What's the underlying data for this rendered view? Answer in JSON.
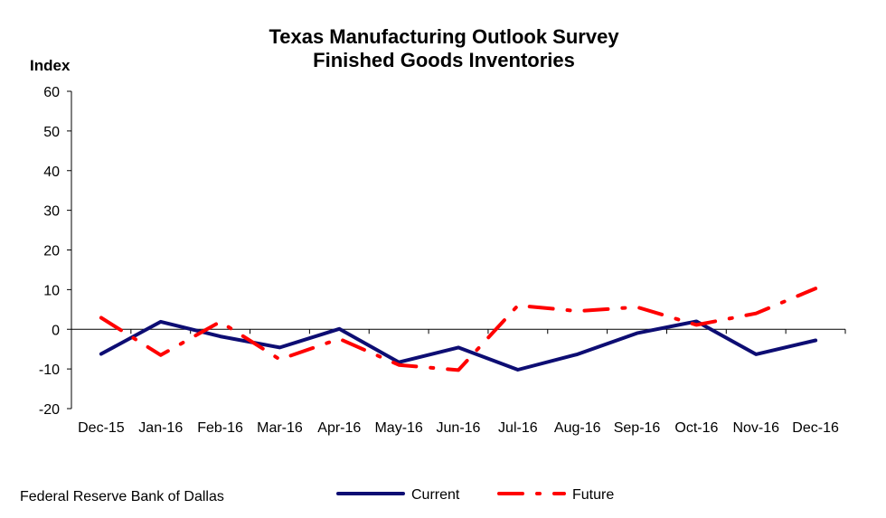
{
  "chart_data": {
    "type": "line",
    "title": "Texas Manufacturing Outlook Survey",
    "subtitle": "Finished Goods Inventories",
    "ylabel": "Index",
    "xlabel": "",
    "ylim": [
      -20,
      60
    ],
    "yticks": [
      -20,
      -10,
      0,
      10,
      20,
      30,
      40,
      50,
      60
    ],
    "categories": [
      "Dec-15",
      "Jan-16",
      "Feb-16",
      "Mar-16",
      "Apr-16",
      "May-16",
      "Jun-16",
      "Jul-16",
      "Aug-16",
      "Sep-16",
      "Oct-16",
      "Nov-16",
      "Dec-16"
    ],
    "series": [
      {
        "name": "Current",
        "color": "#0d0d73",
        "style": "solid",
        "values": [
          -6.2,
          1.9,
          -1.8,
          -4.6,
          0.1,
          -8.3,
          -4.6,
          -10.2,
          -6.3,
          -1.0,
          2.0,
          -6.3,
          -2.8
        ]
      },
      {
        "name": "Future",
        "color": "#ff0000",
        "style": "dash-dot",
        "values": [
          2.9,
          -6.5,
          1.9,
          -7.6,
          -2.4,
          -9.0,
          -10.3,
          6.0,
          4.6,
          5.6,
          1.1,
          4.0,
          10.3
        ]
      }
    ],
    "grid": false,
    "legend": "bottom"
  },
  "footer": {
    "source": "Federal Reserve Bank of Dallas"
  }
}
